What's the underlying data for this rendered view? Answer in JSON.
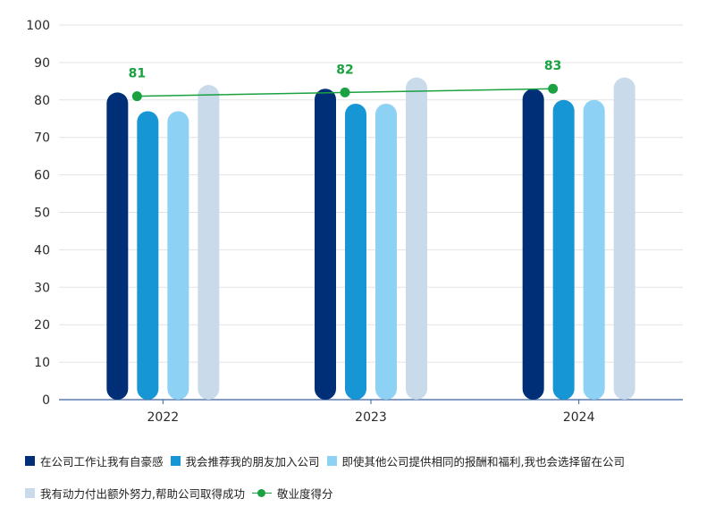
{
  "chart_data": {
    "type": "bar",
    "categories": [
      "2022",
      "2023",
      "2024"
    ],
    "ylim": [
      0,
      100
    ],
    "yticks": [
      0,
      10,
      20,
      30,
      40,
      50,
      60,
      70,
      80,
      90,
      100
    ],
    "grid": true,
    "legend_position": "bottom",
    "series": [
      {
        "name": "在公司工作让我有自豪感",
        "color": "#002f78",
        "values": [
          82,
          83,
          83
        ]
      },
      {
        "name": "我会推荐我的朋友加入公司",
        "color": "#1796d6",
        "values": [
          77,
          79,
          80
        ]
      },
      {
        "name": "即使其他公司提供相同的报酬和福利,我也会选择留在公司",
        "color": "#8dd1f4",
        "values": [
          77,
          79,
          80
        ]
      },
      {
        "name": "我有动力付出额外努力,帮助公司取得成功",
        "color": "#c9dbeb",
        "values": [
          84,
          86,
          86
        ]
      }
    ],
    "line_series": {
      "name": "敬业度得分",
      "color": "#1aa141",
      "values": [
        81,
        82,
        83
      ],
      "labels": [
        "81",
        "82",
        "83"
      ]
    }
  }
}
